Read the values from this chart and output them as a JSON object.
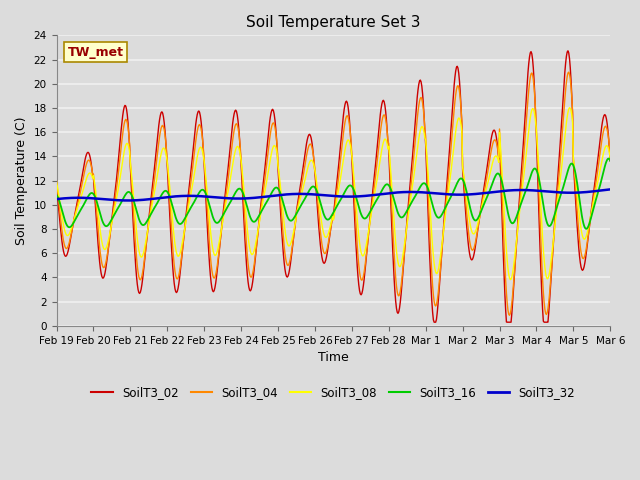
{
  "title": "Soil Temperature Set 3",
  "xlabel": "Time",
  "ylabel": "Soil Temperature (C)",
  "ylim": [
    0,
    24
  ],
  "yticks": [
    0,
    2,
    4,
    6,
    8,
    10,
    12,
    14,
    16,
    18,
    20,
    22,
    24
  ],
  "bg_color": "#dcdcdc",
  "plot_bg_color": "#dcdcdc",
  "grid_color": "#f0f0f0",
  "annotation_text": "TW_met",
  "annotation_bg": "#ffffcc",
  "annotation_border": "#cc0000",
  "series": {
    "SoilT3_02": {
      "color": "#cc0000",
      "linewidth": 1.0
    },
    "SoilT3_04": {
      "color": "#ff8800",
      "linewidth": 1.0
    },
    "SoilT3_08": {
      "color": "#ffff00",
      "linewidth": 1.0
    },
    "SoilT3_16": {
      "color": "#00cc00",
      "linewidth": 1.3
    },
    "SoilT3_32": {
      "color": "#0000cc",
      "linewidth": 1.8
    }
  },
  "xtick_labels": [
    "Feb 19",
    "Feb 20",
    "Feb 21",
    "Feb 22",
    "Feb 23",
    "Feb 24",
    "Feb 25",
    "Feb 26",
    "Feb 27",
    "Feb 28",
    "Mar 1",
    "Mar 2",
    "Mar 3",
    "Mar 4",
    "Mar 5",
    "Mar 6"
  ],
  "num_days": 16
}
